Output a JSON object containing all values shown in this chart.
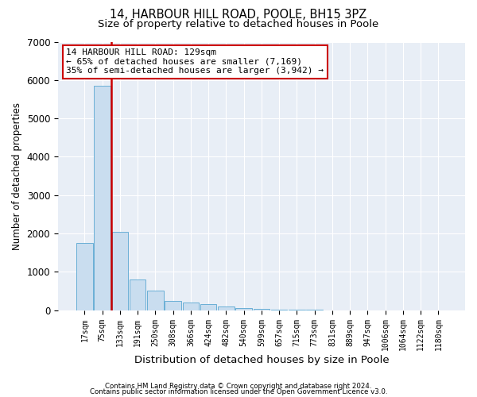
{
  "title1": "14, HARBOUR HILL ROAD, POOLE, BH15 3PZ",
  "title2": "Size of property relative to detached houses in Poole",
  "xlabel": "Distribution of detached houses by size in Poole",
  "ylabel": "Number of detached properties",
  "bar_labels": [
    "17sqm",
    "75sqm",
    "133sqm",
    "191sqm",
    "250sqm",
    "308sqm",
    "366sqm",
    "424sqm",
    "482sqm",
    "540sqm",
    "599sqm",
    "657sqm",
    "715sqm",
    "773sqm",
    "831sqm",
    "889sqm",
    "947sqm",
    "1006sqm",
    "1064sqm",
    "1122sqm",
    "1180sqm"
  ],
  "bar_values": [
    1750,
    5850,
    2050,
    800,
    500,
    250,
    200,
    150,
    100,
    60,
    30,
    15,
    8,
    4,
    2,
    1,
    0,
    0,
    0,
    0,
    0
  ],
  "bar_color": "#c9ddef",
  "bar_edge_color": "#6aafd6",
  "vline_color": "#cc0000",
  "annotation_text": "14 HARBOUR HILL ROAD: 129sqm\n← 65% of detached houses are smaller (7,169)\n35% of semi-detached houses are larger (3,942) →",
  "annotation_box_color": "#ffffff",
  "annotation_box_edge": "#cc0000",
  "ylim": [
    0,
    7000
  ],
  "yticks": [
    0,
    1000,
    2000,
    3000,
    4000,
    5000,
    6000,
    7000
  ],
  "footer1": "Contains HM Land Registry data © Crown copyright and database right 2024.",
  "footer2": "Contains public sector information licensed under the Open Government Licence v3.0.",
  "bg_color": "#ffffff",
  "plot_bg_color": "#e8eef6"
}
